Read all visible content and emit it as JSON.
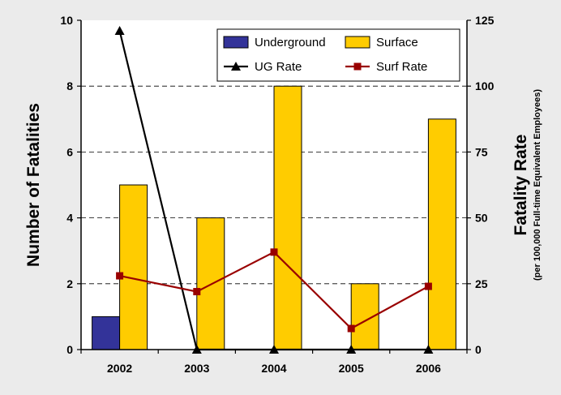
{
  "chart_data": {
    "type": "bar",
    "categories": [
      "2002",
      "2003",
      "2004",
      "2005",
      "2006"
    ],
    "series": [
      {
        "name": "Underground",
        "kind": "bar",
        "axis": "left",
        "color": "#333399",
        "values": [
          1,
          0,
          0,
          0,
          0
        ]
      },
      {
        "name": "Surface",
        "kind": "bar",
        "axis": "left",
        "color": "#ffcc00",
        "values": [
          5,
          4,
          8,
          2,
          7
        ]
      },
      {
        "name": "UG Rate",
        "kind": "line",
        "axis": "right",
        "color": "#000000",
        "marker": "triangle",
        "values": [
          121,
          0,
          0,
          0,
          0
        ]
      },
      {
        "name": "Surf Rate",
        "kind": "line",
        "axis": "right",
        "color": "#990000",
        "marker": "square",
        "values": [
          28,
          22,
          37,
          8,
          24
        ]
      }
    ],
    "ylabel": "Number of Fatalities",
    "ylabel_right": "Fatality Rate",
    "ylabel_right_sub": "(per 100,000 Full-time Equivalent Employees)",
    "ylim": [
      0,
      10
    ],
    "ylim_right": [
      0,
      125
    ],
    "yticks": [
      "0",
      "2",
      "4",
      "6",
      "8",
      "10"
    ],
    "yticks_right": [
      "0",
      "25",
      "50",
      "75",
      "100",
      "125"
    ],
    "grid": "dashed horizontal",
    "legend_position": "top-right"
  }
}
